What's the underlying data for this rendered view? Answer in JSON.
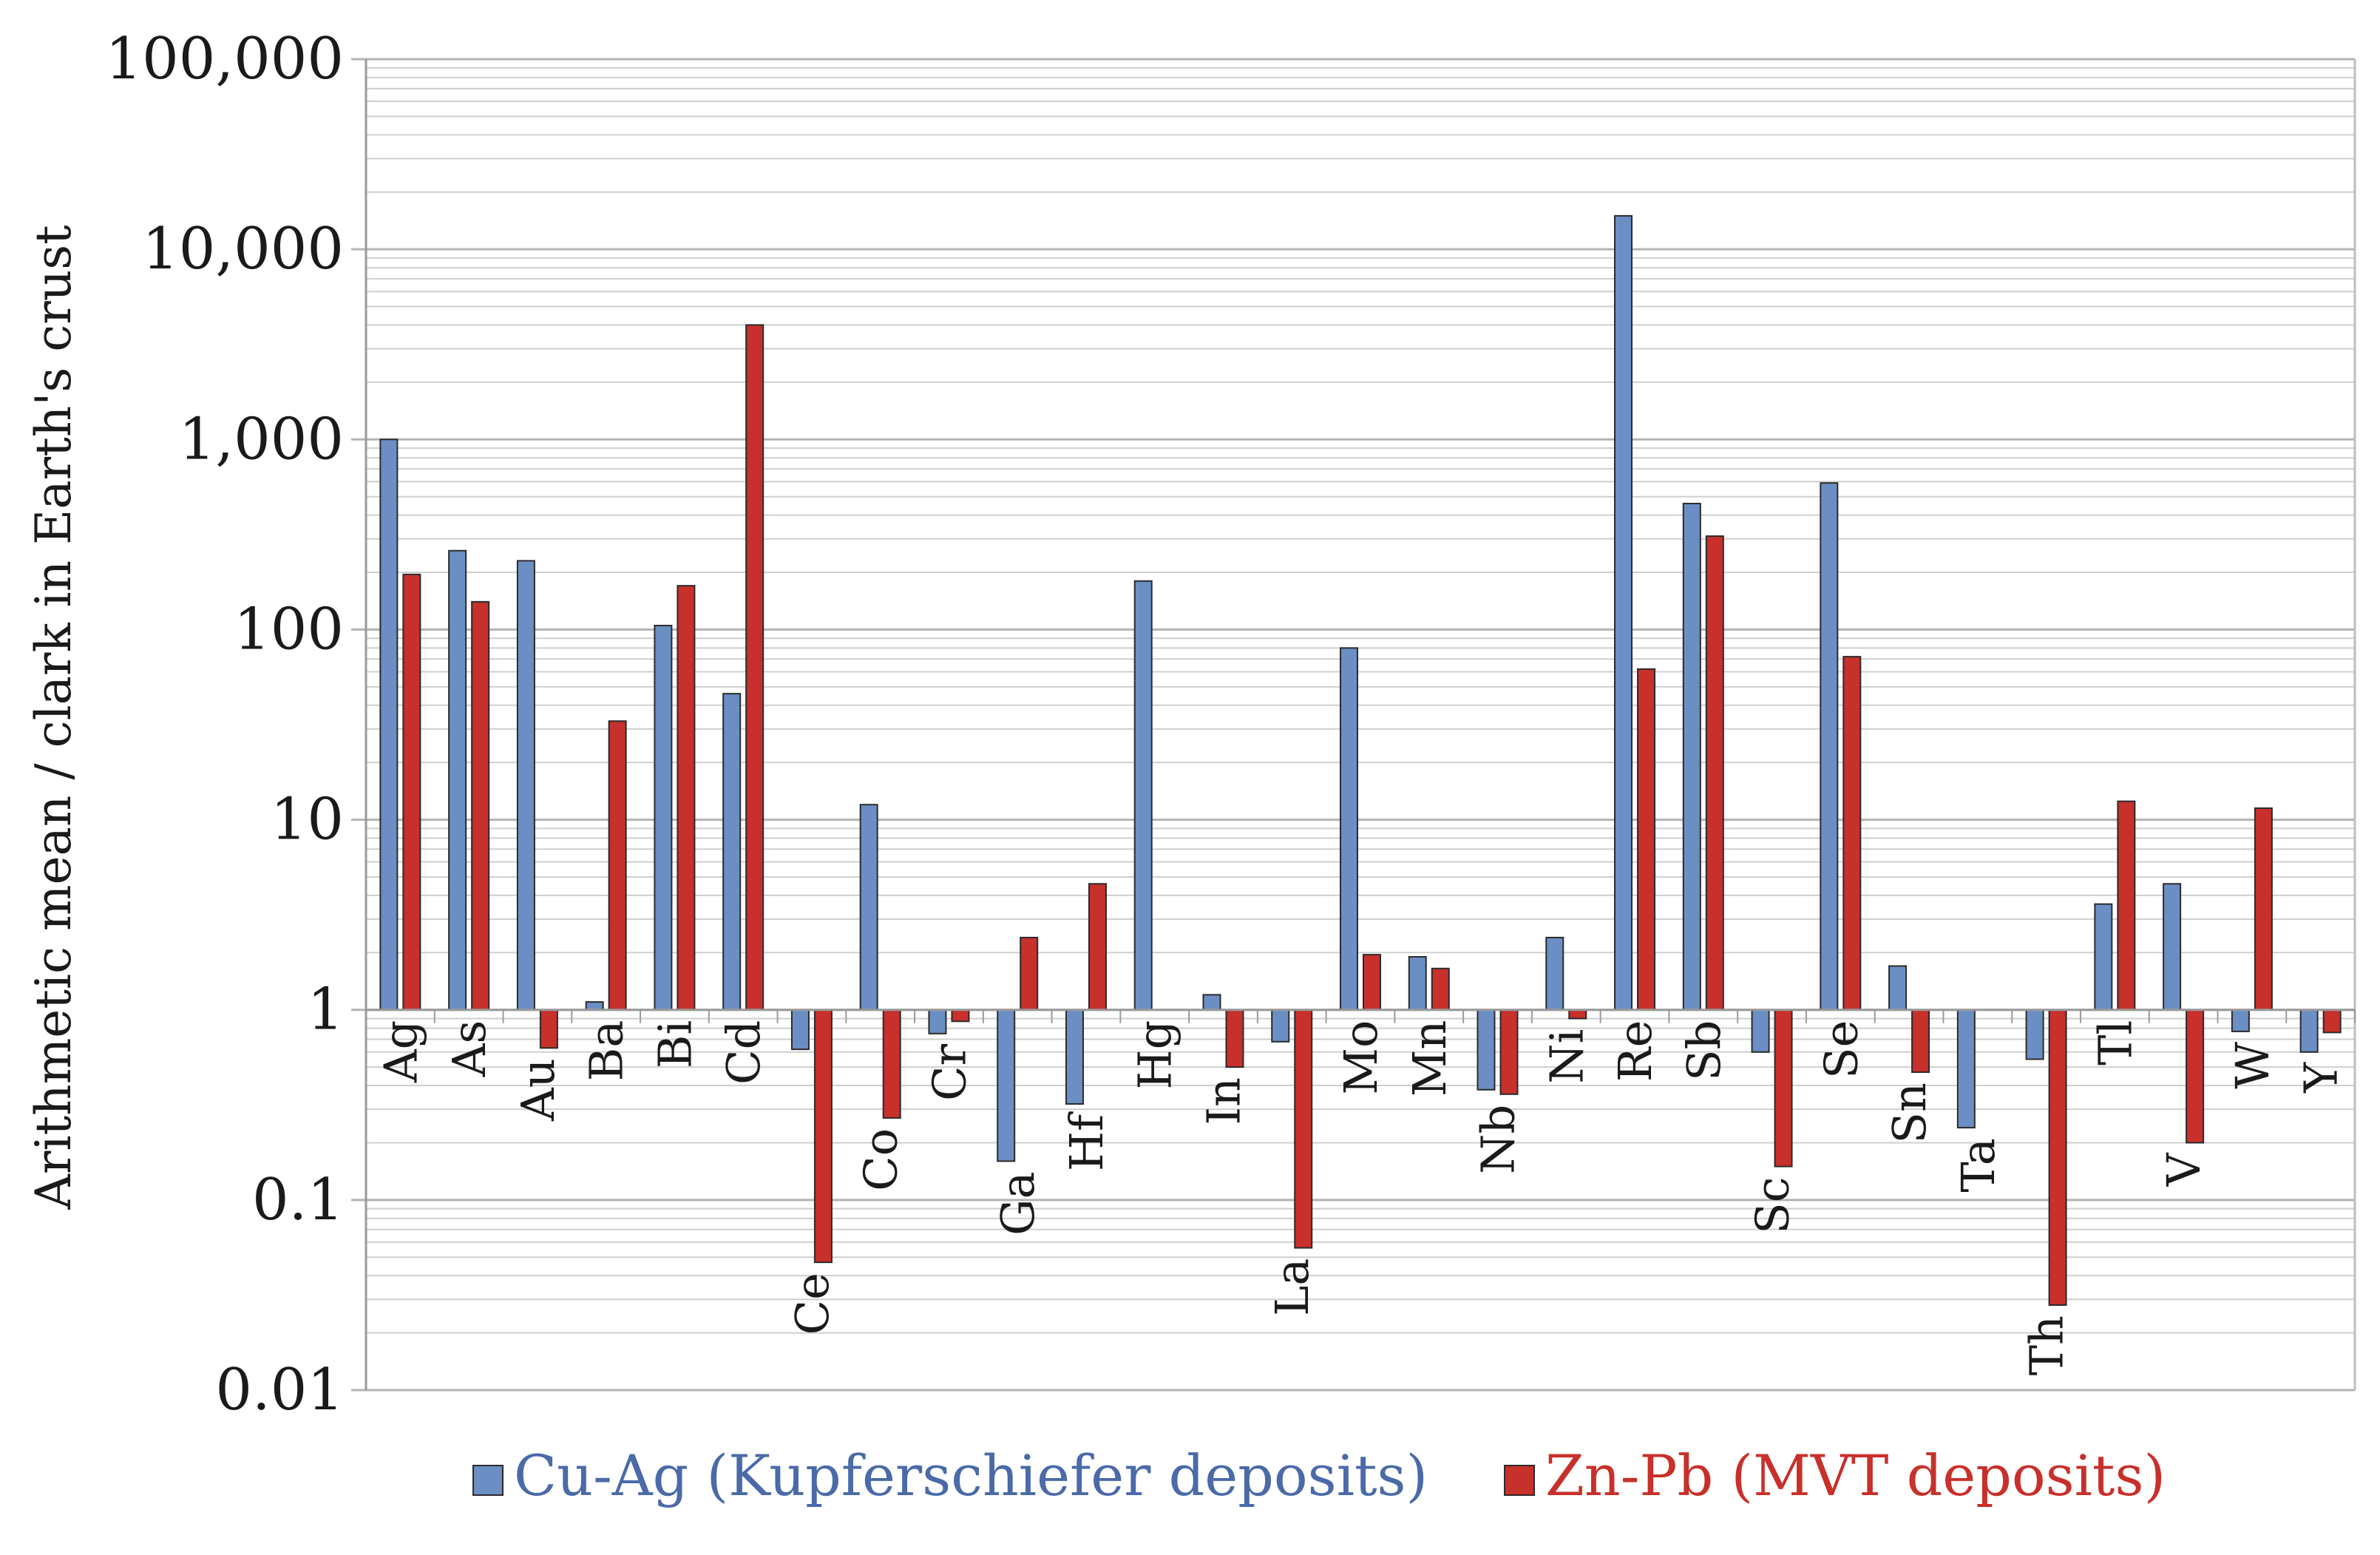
{
  "chart_data": {
    "type": "bar",
    "scale": "log",
    "ylim": [
      0.01,
      100000
    ],
    "ylabel": "Arithmetic mean / clark in Earth's crust",
    "xlabel": "",
    "grid": true,
    "legend_position": "bottom",
    "y_ticks": [
      {
        "value": 100000,
        "label": "100,000"
      },
      {
        "value": 10000,
        "label": "10,000"
      },
      {
        "value": 1000,
        "label": "1,000"
      },
      {
        "value": 100,
        "label": "100"
      },
      {
        "value": 10,
        "label": "10"
      },
      {
        "value": 1,
        "label": "1"
      },
      {
        "value": 0.1,
        "label": "0.1"
      },
      {
        "value": 0.01,
        "label": "0.01"
      }
    ],
    "categories": [
      "Ag",
      "As",
      "Au",
      "Ba",
      "Bi",
      "Cd",
      "Ce",
      "Co",
      "Cr",
      "Ga",
      "Hf",
      "Hg",
      "In",
      "La",
      "Mo",
      "Mn",
      "Nb",
      "Ni",
      "Re",
      "Sb",
      "Sc",
      "Se",
      "Sn",
      "Ta",
      "Th",
      "Tl",
      "V",
      "W",
      "Y"
    ],
    "series": [
      {
        "name": "Cu-Ag (Kupferschiefer deposits)",
        "color": "#6b8fc4",
        "values": [
          1000,
          260,
          230,
          1.1,
          105,
          46,
          0.62,
          12,
          0.75,
          0.16,
          0.32,
          180,
          1.2,
          0.68,
          80,
          1.9,
          0.38,
          2.4,
          15000,
          460,
          0.6,
          590,
          1.7,
          0.24,
          0.55,
          3.6,
          4.6,
          0.77,
          0.6
        ]
      },
      {
        "name": "Zn-Pb (MVT deposits)",
        "color": "#c8302b",
        "values": [
          195,
          140,
          0.63,
          33,
          170,
          4000,
          0.047,
          0.27,
          0.87,
          2.4,
          4.6,
          null,
          0.5,
          0.056,
          1.95,
          1.65,
          0.36,
          0.9,
          62,
          310,
          0.15,
          72,
          0.47,
          null,
          0.028,
          12.5,
          0.2,
          11.5,
          0.76
        ]
      }
    ]
  }
}
